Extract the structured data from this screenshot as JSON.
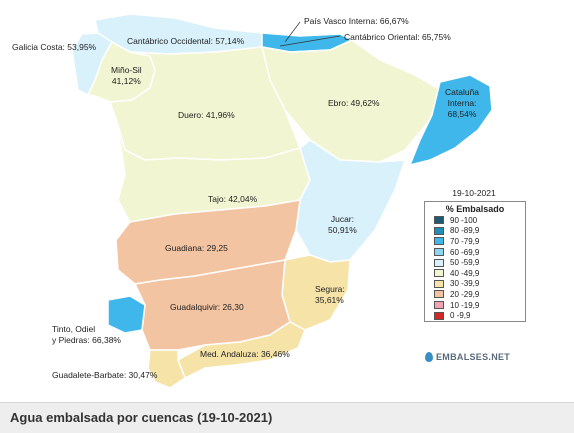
{
  "map": {
    "colors": {
      "band_90_100": "#1c5a78",
      "band_80_89": "#1f8fb8",
      "band_70_79": "#3fb7ea",
      "band_60_69": "#8fd3f2",
      "band_50_59": "#d9f1fb",
      "band_40_49": "#f2f5d2",
      "band_30_39": "#f6e3a7",
      "band_20_29": "#f3c4a2",
      "band_10_19": "#f1a3b3",
      "band_0_9": "#d72626",
      "border": "#ffffff",
      "sea": "#ffffff"
    },
    "basins": [
      {
        "label": "Galicia Costa: 53,95%",
        "value": 53.95,
        "band": "50-59,9"
      },
      {
        "label": "Cantábrico Occidental: 57,14%",
        "value": 57.14,
        "band": "50-59,9"
      },
      {
        "label": "País Vasco Interna: 66,67%",
        "value": 66.67,
        "band": "60-69,9"
      },
      {
        "label": "Cantábrico Oriental: 65,75%",
        "value": 65.75,
        "band": "60-69,9"
      },
      {
        "label_line1": "Miño-Sil",
        "label_line2": "41,12%",
        "value": 41.12,
        "band": "40-49,9"
      },
      {
        "label": "Ebro: 49,62%",
        "value": 49.62,
        "band": "40-49,9"
      },
      {
        "label_line1": "Cataluña",
        "label_line2": "Interna:",
        "label_line3": "68,54%",
        "value": 68.54,
        "band": "60-69,9"
      },
      {
        "label": "Duero: 41,96%",
        "value": 41.96,
        "band": "40-49,9"
      },
      {
        "label": "Tajo: 42,04%",
        "value": 42.04,
        "band": "40-49,9"
      },
      {
        "label_line1": "Jucar:",
        "label_line2": "50,91%",
        "value": 50.91,
        "band": "50-59,9"
      },
      {
        "label": "Guadiana: 29,25",
        "value": 29.25,
        "band": "20-29,9"
      },
      {
        "label_line1": "Segura:",
        "label_line2": "35,61%",
        "value": 35.61,
        "band": "30-39,9"
      },
      {
        "label": "Guadalquivir: 26,30",
        "value": 26.3,
        "band": "20-29,9"
      },
      {
        "label_line1": "Tinto, Odiel",
        "label_line2": "y Piedras: 66,38%",
        "value": 66.38,
        "band": "60-69,9"
      },
      {
        "label": "Med. Andaluza: 36,46%",
        "value": 36.46,
        "band": "30-39,9"
      },
      {
        "label": "Guadalete-Barbate: 30,47%",
        "value": 30.47,
        "band": "30-39,9"
      }
    ]
  },
  "legend": {
    "date": "19-10-2021",
    "title": "% Embalsado",
    "items": [
      {
        "label": "90 -100",
        "color": "#1c5a78"
      },
      {
        "label": "80 -89,9",
        "color": "#1f8fb8"
      },
      {
        "label": "70 -79,9",
        "color": "#3fb7ea"
      },
      {
        "label": "60 -69,9",
        "color": "#8fd3f2"
      },
      {
        "label": "50 -59,9",
        "color": "#d9f1fb"
      },
      {
        "label": "40 -49,9",
        "color": "#f2f5d2"
      },
      {
        "label": "30 -39,9",
        "color": "#f6e3a7"
      },
      {
        "label": "20 -29,9",
        "color": "#f3c4a2"
      },
      {
        "label": "10 -19,9",
        "color": "#f1a3b3"
      },
      {
        "label": "0 -9,9",
        "color": "#d72626"
      }
    ]
  },
  "brand": {
    "text": "EMBALSES.NET"
  },
  "caption": {
    "text": "Agua embalsada por cuencas (19-10-2021)"
  }
}
